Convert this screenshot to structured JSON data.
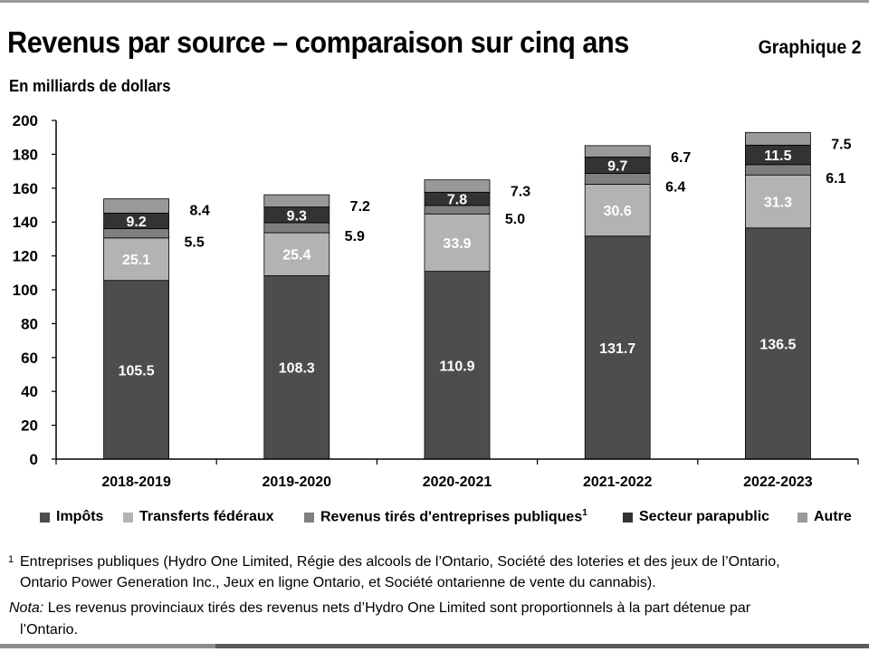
{
  "title": "Revenus par source – comparaison sur cinq ans",
  "chart_number": "Graphique 2",
  "unit_label": "En milliards de dollars",
  "colors": {
    "impots": "#4d4d4d",
    "transferts": "#b3b3b3",
    "entreprises": "#7f7f7f",
    "parapublic": "#333333",
    "autre": "#999999",
    "axis": "#000000"
  },
  "legend": [
    {
      "label": "Impôts",
      "sup": "",
      "color": "#4d4d4d"
    },
    {
      "label": "Transferts fédéraux",
      "sup": "",
      "color": "#b3b3b3"
    },
    {
      "label": "Revenus tirés d'entreprises publiques",
      "sup": "1",
      "color": "#7f7f7f"
    },
    {
      "label": "Secteur parapublic",
      "sup": "",
      "color": "#333333"
    },
    {
      "label": "Autre",
      "sup": "",
      "color": "#999999"
    }
  ],
  "chart_data": {
    "type": "bar",
    "stacked": true,
    "title": "Revenus par source – comparaison sur cinq ans",
    "ylabel": "En milliards de dollars",
    "ylim": [
      0,
      200
    ],
    "yticks": [
      0,
      20,
      40,
      60,
      80,
      100,
      120,
      140,
      160,
      180,
      200
    ],
    "grid": false,
    "legend_position": "bottom",
    "categories": [
      "2018-2019",
      "2019-2020",
      "2020-2021",
      "2021-2022",
      "2022-2023"
    ],
    "series": [
      {
        "name": "Impôts",
        "values": [
          105.5,
          108.3,
          110.9,
          131.7,
          136.5
        ],
        "labels": [
          "105.5",
          "108.3",
          "110.9",
          "131.7",
          "136.5"
        ]
      },
      {
        "name": "Transferts fédéraux",
        "values": [
          25.1,
          25.4,
          33.9,
          30.6,
          31.3
        ],
        "labels": [
          "25.1",
          "25.4",
          "33.9",
          "30.6",
          "31.3"
        ]
      },
      {
        "name": "Revenus tirés d'entreprises publiques",
        "values": [
          5.5,
          5.9,
          5.0,
          6.4,
          6.1
        ],
        "labels": [
          "5.5",
          "5.9",
          "5.0",
          "6.4",
          "6.1"
        ]
      },
      {
        "name": "Secteur parapublic",
        "values": [
          9.2,
          9.3,
          7.8,
          9.7,
          11.5
        ],
        "labels": [
          "9.2",
          "9.3",
          "7.8",
          "9.7",
          "11.5"
        ]
      },
      {
        "name": "Autre",
        "values": [
          8.4,
          7.2,
          7.3,
          6.7,
          7.5
        ],
        "labels": [
          "8.4",
          "7.2",
          "7.3",
          "6.7",
          "7.5"
        ]
      }
    ]
  },
  "footnote": {
    "mark": "1",
    "line1": "Entreprises publiques (Hydro One Limited, Régie des alcools de l’Ontario, Société des loteries et des jeux de l’Ontario,",
    "line2": "Ontario Power Generation Inc., Jeux en ligne Ontario, et Société ontarienne de vente du cannabis).",
    "nota_label": "Nota:",
    "nota_line1": " Les revenus provinciaux tirés des revenus nets d’Hydro One Limited sont proportionnels à la part détenue par",
    "nota_line2": "l’Ontario."
  }
}
